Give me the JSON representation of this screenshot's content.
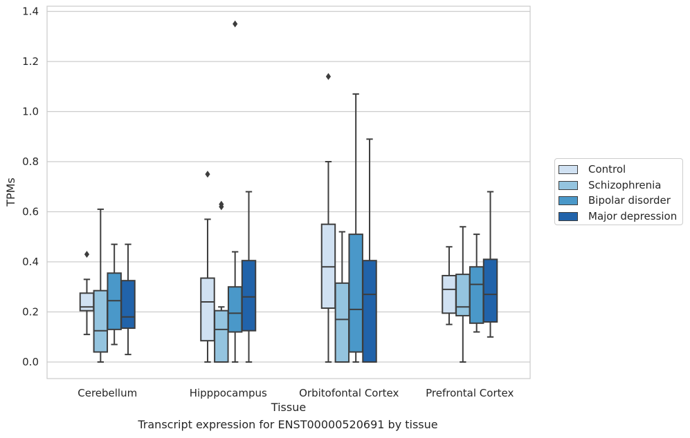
{
  "chart_data": {
    "type": "box",
    "title": "",
    "xlabel": "Tissue",
    "ylabel": "TPMs",
    "caption": "Transcript expression for ENST00000520691 by tissue",
    "ylim": [
      -0.065,
      1.42
    ],
    "yticks": [
      "0.0",
      "0.2",
      "0.4",
      "0.6",
      "0.8",
      "1.0",
      "1.2",
      "1.4"
    ],
    "ytick_values": [
      0,
      0.2,
      0.4,
      0.6,
      0.8,
      1.0,
      1.2,
      1.4
    ],
    "grid": "horizontal",
    "legend_position": "right",
    "categories": [
      "Cerebellum",
      "Hipppocampus",
      "Orbitofontal Cortex",
      "Prefrontal Cortex"
    ],
    "series": [
      {
        "name": "Control",
        "color": "#d0e1f2",
        "boxes": [
          {
            "whislo": 0.11,
            "q1": 0.205,
            "med": 0.22,
            "q3": 0.275,
            "whishi": 0.33,
            "fliers": [
              0.43
            ]
          },
          {
            "whislo": 0.0,
            "q1": 0.085,
            "med": 0.24,
            "q3": 0.335,
            "whishi": 0.57,
            "fliers": [
              0.75
            ]
          },
          {
            "whislo": 0.0,
            "q1": 0.215,
            "med": 0.38,
            "q3": 0.55,
            "whishi": 0.8,
            "fliers": [
              1.14
            ]
          },
          {
            "whislo": 0.15,
            "q1": 0.195,
            "med": 0.29,
            "q3": 0.345,
            "whishi": 0.46,
            "fliers": []
          }
        ]
      },
      {
        "name": "Schizophrenia",
        "color": "#94c4df",
        "boxes": [
          {
            "whislo": 0.0,
            "q1": 0.04,
            "med": 0.125,
            "q3": 0.285,
            "whishi": 0.61,
            "fliers": []
          },
          {
            "whislo": 0.0,
            "q1": 0.0,
            "med": 0.13,
            "q3": 0.205,
            "whishi": 0.22,
            "fliers": [
              0.62,
              0.63
            ]
          },
          {
            "whislo": 0.0,
            "q1": 0.0,
            "med": 0.17,
            "q3": 0.315,
            "whishi": 0.52,
            "fliers": []
          },
          {
            "whislo": 0.0,
            "q1": 0.185,
            "med": 0.22,
            "q3": 0.35,
            "whishi": 0.54,
            "fliers": []
          }
        ]
      },
      {
        "name": "Bipolar disorder",
        "color": "#4a98c9",
        "boxes": [
          {
            "whislo": 0.07,
            "q1": 0.13,
            "med": 0.245,
            "q3": 0.355,
            "whishi": 0.47,
            "fliers": []
          },
          {
            "whislo": 0.0,
            "q1": 0.12,
            "med": 0.195,
            "q3": 0.3,
            "whishi": 0.44,
            "fliers": [
              1.35
            ]
          },
          {
            "whislo": 0.0,
            "q1": 0.04,
            "med": 0.21,
            "q3": 0.51,
            "whishi": 1.07,
            "fliers": []
          },
          {
            "whislo": 0.12,
            "q1": 0.155,
            "med": 0.31,
            "q3": 0.38,
            "whishi": 0.51,
            "fliers": []
          }
        ]
      },
      {
        "name": "Major depression",
        "color": "#2163aa",
        "boxes": [
          {
            "whislo": 0.03,
            "q1": 0.135,
            "med": 0.18,
            "q3": 0.325,
            "whishi": 0.47,
            "fliers": []
          },
          {
            "whislo": 0.0,
            "q1": 0.125,
            "med": 0.26,
            "q3": 0.405,
            "whishi": 0.68,
            "fliers": []
          },
          {
            "whislo": 0.0,
            "q1": 0.0,
            "med": 0.27,
            "q3": 0.405,
            "whishi": 0.89,
            "fliers": []
          },
          {
            "whislo": 0.1,
            "q1": 0.16,
            "med": 0.27,
            "q3": 0.41,
            "whishi": 0.68,
            "fliers": []
          }
        ]
      }
    ]
  }
}
